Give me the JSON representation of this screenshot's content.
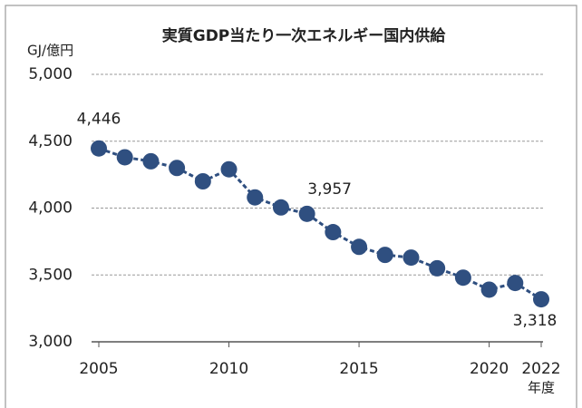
{
  "chart_data": {
    "type": "line",
    "title": "実質GDP当たり一次エネルギー国内供給",
    "y_label": "GJ/億円",
    "x_label": "年度",
    "x": [
      2005,
      2006,
      2007,
      2008,
      2009,
      2010,
      2011,
      2012,
      2013,
      2014,
      2015,
      2016,
      2017,
      2018,
      2019,
      2020,
      2021,
      2022
    ],
    "series": [
      {
        "name": "実質GDP当たり一次エネルギー国内供給",
        "color": "#2f4f80",
        "values": [
          4446,
          4380,
          4350,
          4300,
          4200,
          4290,
          4080,
          4005,
          3957,
          3820,
          3710,
          3650,
          3630,
          3550,
          3480,
          3390,
          3440,
          3318
        ],
        "value_labels": [
          "4,446",
          null,
          null,
          null,
          null,
          null,
          null,
          null,
          "3,957",
          null,
          null,
          null,
          null,
          null,
          null,
          null,
          null,
          "3,318"
        ]
      }
    ],
    "xlim": [
      2005,
      2022
    ],
    "xticks": [
      2005,
      2010,
      2015,
      2020,
      2022
    ],
    "ylim": [
      3000,
      5000
    ],
    "yticks": [
      {
        "value": 3000,
        "label": "3,000"
      },
      {
        "value": 3500,
        "label": "3,500"
      },
      {
        "value": 4000,
        "label": "4,000"
      },
      {
        "value": 4500,
        "label": "4,500"
      },
      {
        "value": 5000,
        "label": "5,000"
      }
    ],
    "grid": true
  }
}
